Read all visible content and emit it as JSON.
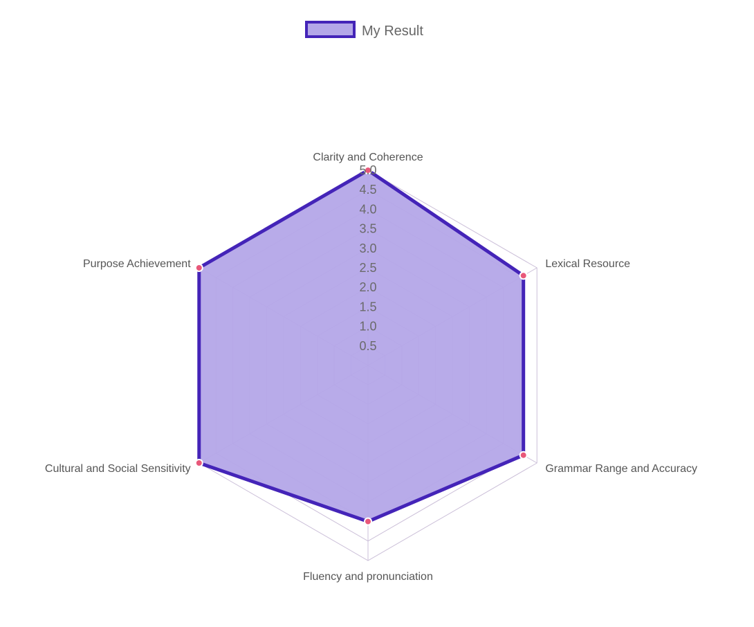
{
  "chart_data": {
    "type": "radar",
    "categories": [
      "Clarity and Coherence",
      "Lexical Resource",
      "Grammar Range and Accuracy",
      "Fluency and pronunciation",
      "Cultural and Social Sensitivity",
      "Purpose Achievement"
    ],
    "series": [
      {
        "name": "My Result",
        "values": [
          5.0,
          4.6,
          4.6,
          4.0,
          5.0,
          5.0
        ]
      }
    ],
    "rlim": [
      0,
      5.0
    ],
    "ticks": [
      "0.5",
      "1.0",
      "1.5",
      "2.0",
      "2.5",
      "3.0",
      "3.5",
      "4.0",
      "4.5",
      "5.0"
    ],
    "legend_position": "top",
    "colors": {
      "border": "#4424b8",
      "fill": "#b4a7e8",
      "point": "#e8587a",
      "grid": "#cbbfd8"
    }
  }
}
